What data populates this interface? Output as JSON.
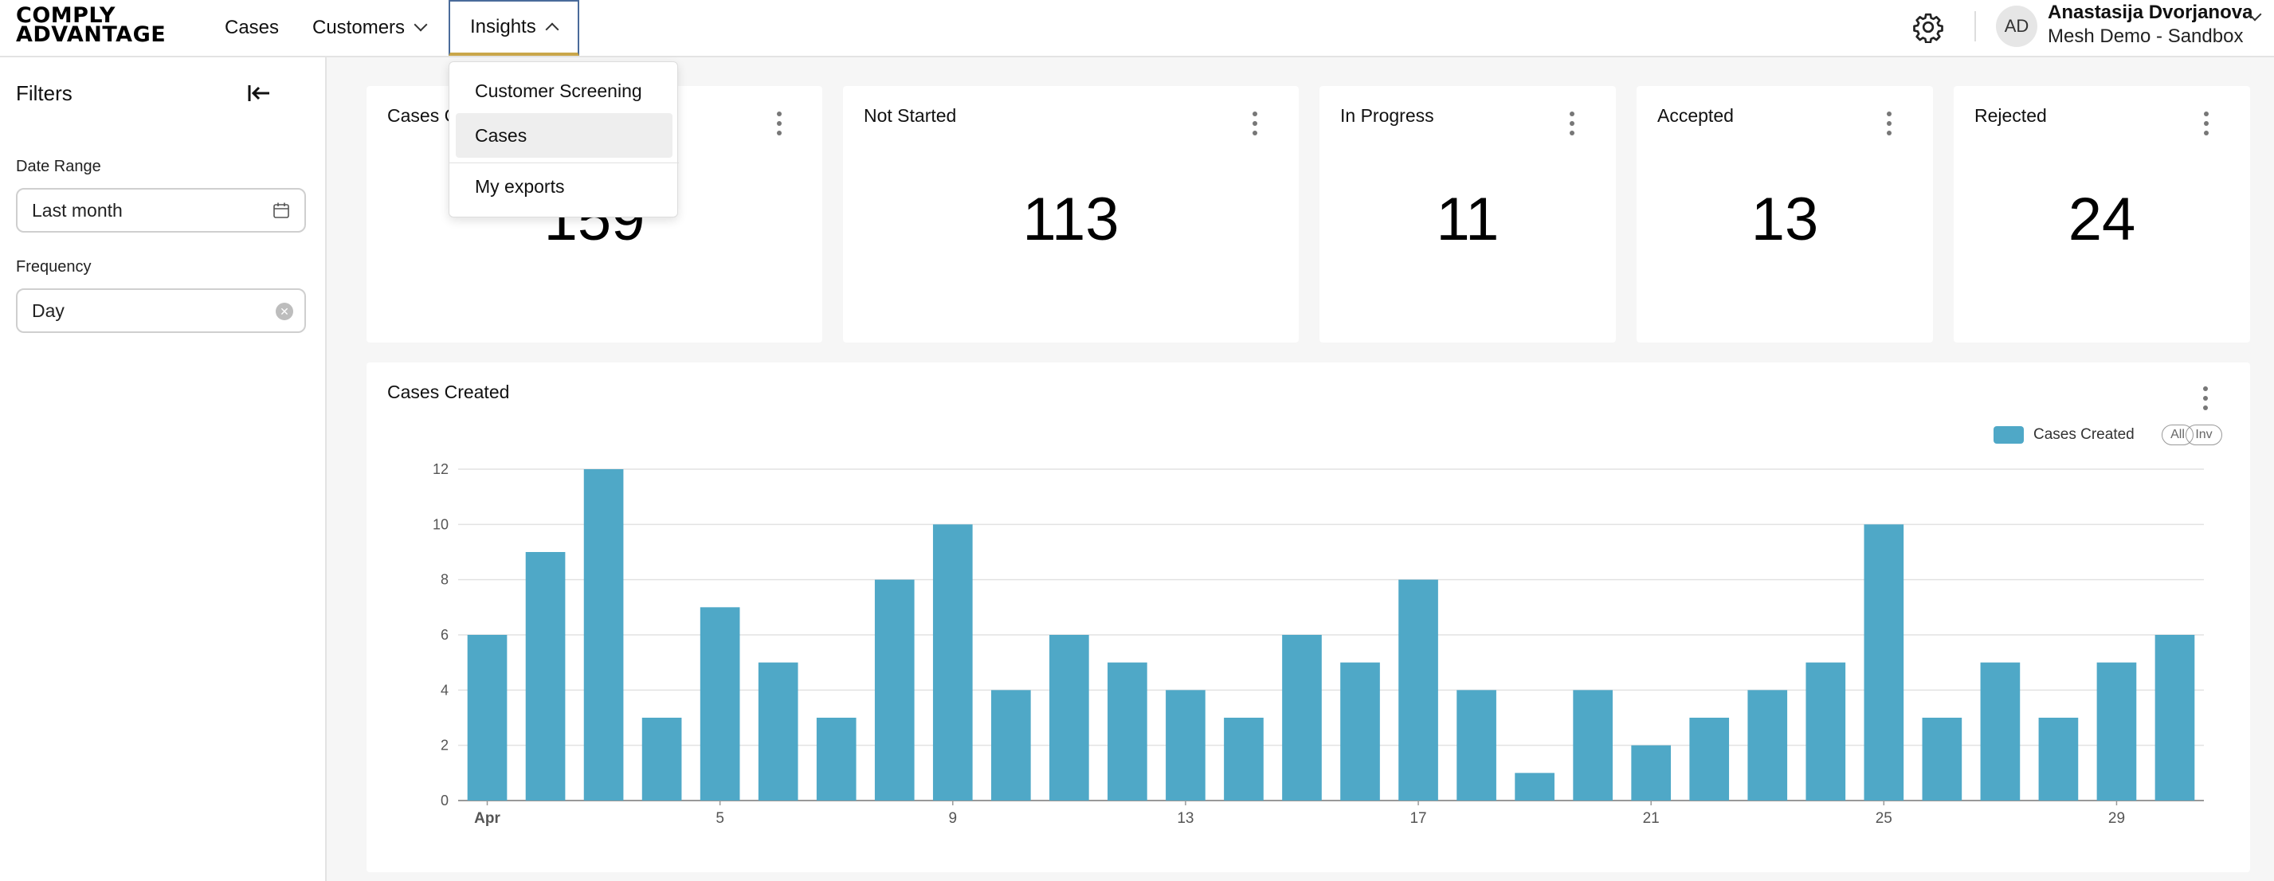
{
  "header": {
    "logo_line1": "COMPLY",
    "logo_line2": "ADVANTAGE",
    "nav": {
      "cases": "Cases",
      "customers": "Customers",
      "insights": "Insights"
    },
    "user": {
      "initials": "AD",
      "name": "Anastasija Dvorjanova",
      "org": "Mesh Demo - Sandbox"
    }
  },
  "insights_menu": {
    "items": [
      "Customer Screening",
      "Cases",
      "My exports"
    ],
    "active": "Cases"
  },
  "sidebar": {
    "title": "Filters",
    "date_range": {
      "label": "Date Range",
      "value": "Last month"
    },
    "frequency": {
      "label": "Frequency",
      "value": "Day"
    }
  },
  "stats": [
    {
      "title": "Cases Created",
      "value": "159"
    },
    {
      "title": "Not Started",
      "value": "113"
    },
    {
      "title": "In Progress",
      "value": "11"
    },
    {
      "title": "Accepted",
      "value": "13"
    },
    {
      "title": "Rejected",
      "value": "24"
    }
  ],
  "chart_card": {
    "title": "Cases Created",
    "legend_label": "Cases Created",
    "pill_all": "All",
    "pill_inv": "Inv"
  },
  "chart_data": {
    "type": "bar",
    "title": "Cases Created",
    "series": [
      {
        "name": "Cases Created",
        "color": "#4fa8c7",
        "values": [
          6,
          9,
          12,
          3,
          7,
          5,
          3,
          8,
          10,
          4,
          6,
          5,
          4,
          3,
          6,
          5,
          8,
          4,
          1,
          4,
          2,
          3,
          4,
          5,
          10,
          3,
          5,
          3,
          5,
          6
        ]
      }
    ],
    "x": [
      "Apr 1",
      "Apr 2",
      "Apr 3",
      "Apr 4",
      "Apr 5",
      "Apr 6",
      "Apr 7",
      "Apr 8",
      "Apr 9",
      "Apr 10",
      "Apr 11",
      "Apr 12",
      "Apr 13",
      "Apr 14",
      "Apr 15",
      "Apr 16",
      "Apr 17",
      "Apr 18",
      "Apr 19",
      "Apr 20",
      "Apr 21",
      "Apr 22",
      "Apr 23",
      "Apr 24",
      "Apr 25",
      "Apr 26",
      "Apr 27",
      "Apr 28",
      "Apr 29",
      "Apr 30"
    ],
    "x_tick_labels": [
      {
        "index": 0,
        "label": "Apr"
      },
      {
        "index": 4,
        "label": "5"
      },
      {
        "index": 8,
        "label": "9"
      },
      {
        "index": 12,
        "label": "13"
      },
      {
        "index": 16,
        "label": "17"
      },
      {
        "index": 20,
        "label": "21"
      },
      {
        "index": 24,
        "label": "25"
      },
      {
        "index": 28,
        "label": "29"
      }
    ],
    "y_ticks": [
      0,
      2,
      4,
      6,
      8,
      10,
      12
    ],
    "ylim": [
      0,
      12
    ],
    "grid": true,
    "legend": "top-right"
  }
}
